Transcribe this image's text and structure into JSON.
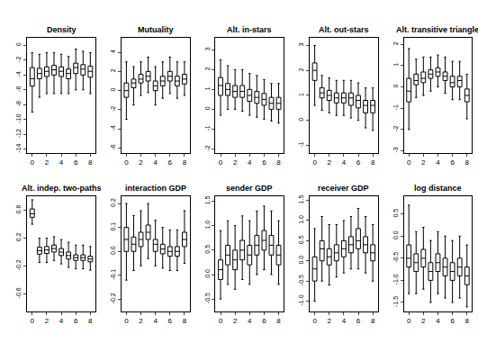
{
  "chart_data": [
    {
      "type": "box",
      "title": "Density",
      "color": "#000000",
      "x": [
        0,
        1,
        2,
        3,
        4,
        5,
        6,
        7,
        8
      ],
      "xlim": [
        -0.7,
        8.7
      ],
      "xticks": [
        0,
        2,
        4,
        6,
        8
      ],
      "ylim": [
        -14.5,
        1
      ],
      "yticks": [
        -14,
        -12,
        -10,
        -8,
        -6,
        -4,
        -2,
        0
      ],
      "lowerfence": [
        -9,
        -7,
        -6.5,
        -6.5,
        -6.5,
        -6.5,
        -6,
        -6,
        -6.5
      ],
      "q1": [
        -5.5,
        -4.5,
        -4.2,
        -4,
        -4.2,
        -4.5,
        -3.8,
        -4,
        -4.3
      ],
      "median": [
        -4.5,
        -3.8,
        -3.5,
        -3.3,
        -3.5,
        -3.8,
        -3,
        -3.2,
        -3.5
      ],
      "q3": [
        -3,
        -3.1,
        -2.9,
        -2.7,
        -2.9,
        -3.2,
        -2.4,
        -2.6,
        -2.8
      ],
      "upperfence": [
        -1,
        -1.2,
        -1,
        -1,
        -1.2,
        -1.5,
        -0.5,
        -0.8,
        -1
      ]
    },
    {
      "type": "box",
      "title": "Mutuality",
      "color": "#000000",
      "x": [
        0,
        1,
        2,
        3,
        4,
        5,
        6,
        7,
        8
      ],
      "xlim": [
        -0.7,
        8.7
      ],
      "xticks": [
        0,
        2,
        4,
        6,
        8
      ],
      "ylim": [
        -6.5,
        5.5
      ],
      "yticks": [
        -6,
        -4,
        -2,
        0,
        2,
        4
      ],
      "lowerfence": [
        -3,
        -1.5,
        -0.5,
        -0.2,
        -1.5,
        -0.8,
        -0.3,
        -0.8,
        -0.5
      ],
      "q1": [
        -0.7,
        0.3,
        0.8,
        1.0,
        0.0,
        0.5,
        1.0,
        0.5,
        0.7
      ],
      "median": [
        0,
        0.8,
        1.2,
        1.5,
        0.5,
        1.0,
        1.5,
        1.0,
        1.2
      ],
      "q3": [
        0.8,
        1.2,
        1.7,
        2.0,
        1.0,
        1.5,
        2.0,
        1.5,
        1.7
      ],
      "upperfence": [
        3,
        2.5,
        3,
        3.5,
        2.5,
        3,
        3.5,
        3,
        3
      ]
    },
    {
      "type": "box",
      "title": "Alt. in-stars",
      "color": "#000000",
      "x": [
        0,
        1,
        2,
        3,
        4,
        5,
        6,
        7,
        8
      ],
      "xlim": [
        -0.7,
        8.7
      ],
      "xticks": [
        0,
        2,
        4,
        6,
        8
      ],
      "ylim": [
        -2.2,
        3.6
      ],
      "yticks": [
        -2,
        -1,
        0,
        1,
        2,
        3
      ],
      "lowerfence": [
        -0.3,
        0.0,
        0.0,
        -0.1,
        -0.3,
        -0.4,
        -0.5,
        -0.6,
        -0.7
      ],
      "q1": [
        0.7,
        0.7,
        0.6,
        0.6,
        0.4,
        0.3,
        0.2,
        0.0,
        0.0
      ],
      "median": [
        1.2,
        1.0,
        0.9,
        0.9,
        0.7,
        0.6,
        0.5,
        0.3,
        0.3
      ],
      "q3": [
        1.6,
        1.3,
        1.2,
        1.2,
        1.0,
        0.9,
        0.8,
        0.6,
        0.6
      ],
      "upperfence": [
        2.5,
        2.2,
        2.0,
        2.0,
        1.8,
        1.7,
        1.5,
        1.3,
        1.3
      ]
    },
    {
      "type": "box",
      "title": "Alt. out-stars",
      "color": "#000000",
      "x": [
        0,
        1,
        2,
        3,
        4,
        5,
        6,
        7,
        8
      ],
      "xlim": [
        -0.7,
        8.7
      ],
      "xticks": [
        0,
        2,
        4,
        6,
        8
      ],
      "ylim": [
        -1.3,
        3.3
      ],
      "yticks": [
        -1,
        0,
        1,
        2,
        3
      ],
      "lowerfence": [
        0.6,
        0.4,
        0.3,
        0.2,
        0.2,
        0.1,
        0.0,
        -0.3,
        -0.4
      ],
      "q1": [
        1.6,
        0.9,
        0.8,
        0.7,
        0.7,
        0.6,
        0.5,
        0.3,
        0.3
      ],
      "median": [
        2.0,
        1.1,
        1.0,
        0.9,
        0.9,
        0.9,
        0.8,
        0.6,
        0.6
      ],
      "q3": [
        2.3,
        1.3,
        1.2,
        1.1,
        1.1,
        1.1,
        1.0,
        0.8,
        0.8
      ],
      "upperfence": [
        3.0,
        1.8,
        1.7,
        1.6,
        1.6,
        1.6,
        1.5,
        1.3,
        1.3
      ]
    },
    {
      "type": "box",
      "title": "Alt. transitive triangle",
      "color": "#000000",
      "x": [
        0,
        1,
        2,
        3,
        4,
        5,
        6,
        7,
        8
      ],
      "xlim": [
        -0.7,
        8.7
      ],
      "xticks": [
        0,
        2,
        4,
        6,
        8
      ],
      "ylim": [
        -3.1,
        2.3
      ],
      "yticks": [
        -3,
        -2,
        -1,
        0,
        1,
        2
      ],
      "lowerfence": [
        -2.0,
        -0.5,
        -0.4,
        -0.2,
        0.0,
        -0.3,
        -0.6,
        -0.6,
        -1.5
      ],
      "q1": [
        -0.7,
        0.1,
        0.2,
        0.4,
        0.5,
        0.3,
        0.0,
        0.0,
        -0.7
      ],
      "median": [
        -0.2,
        0.3,
        0.4,
        0.6,
        0.7,
        0.5,
        0.2,
        0.3,
        -0.4
      ],
      "q3": [
        0.4,
        0.6,
        0.7,
        0.8,
        0.9,
        0.7,
        0.5,
        0.5,
        -0.1
      ],
      "upperfence": [
        1.8,
        1.3,
        1.4,
        1.4,
        1.5,
        1.4,
        1.2,
        1.2,
        0.6
      ]
    },
    {
      "type": "box",
      "title": "Alt. indep. two-paths",
      "color": "#000000",
      "x": [
        0,
        1,
        2,
        3,
        4,
        5,
        6,
        7,
        8
      ],
      "xlim": [
        -0.7,
        8.7
      ],
      "xticks": [
        0,
        2,
        4,
        6,
        8
      ],
      "ylim": [
        -0.85,
        0.8
      ],
      "yticks": [
        -0.6,
        -0.2,
        0.2,
        0.6
      ],
      "lowerfence": [
        0.4,
        -0.15,
        -0.15,
        -0.12,
        -0.17,
        -0.22,
        -0.24,
        -0.24,
        -0.26
      ],
      "q1": [
        0.5,
        -0.03,
        -0.02,
        0.0,
        -0.05,
        -0.1,
        -0.12,
        -0.12,
        -0.14
      ],
      "median": [
        0.55,
        0.02,
        0.03,
        0.05,
        0.0,
        -0.05,
        -0.08,
        -0.08,
        -0.1
      ],
      "q3": [
        0.62,
        0.07,
        0.08,
        0.1,
        0.05,
        0.0,
        -0.04,
        -0.04,
        -0.06
      ],
      "upperfence": [
        0.75,
        0.2,
        0.2,
        0.22,
        0.18,
        0.14,
        0.1,
        0.1,
        0.08
      ]
    },
    {
      "type": "box",
      "title": "interaction GDP",
      "color": "#000000",
      "x": [
        0,
        1,
        2,
        3,
        4,
        5,
        6,
        7,
        8
      ],
      "xlim": [
        -0.7,
        8.7
      ],
      "xticks": [
        0,
        2,
        4,
        6,
        8
      ],
      "ylim": [
        -0.25,
        0.23
      ],
      "yticks": [
        -0.2,
        -0.1,
        {
          "value": 0,
          "label": "0.0"
        },
        0.1,
        0.2
      ],
      "lowerfence": [
        -0.12,
        -0.08,
        -0.06,
        -0.03,
        -0.06,
        -0.07,
        -0.08,
        -0.08,
        -0.05
      ],
      "q1": [
        0.0,
        0.0,
        0.02,
        0.05,
        0.0,
        -0.01,
        -0.02,
        -0.02,
        0.02
      ],
      "median": [
        0.05,
        0.03,
        0.05,
        0.08,
        0.03,
        0.01,
        0.0,
        0.0,
        0.05
      ],
      "q3": [
        0.1,
        0.06,
        0.08,
        0.11,
        0.05,
        0.03,
        0.02,
        0.02,
        0.08
      ],
      "upperfence": [
        0.2,
        0.15,
        0.17,
        0.2,
        0.13,
        0.1,
        0.09,
        0.09,
        0.17
      ]
    },
    {
      "type": "box",
      "title": "sender GDP",
      "color": "#000000",
      "x": [
        0,
        1,
        2,
        3,
        4,
        5,
        6,
        7,
        8
      ],
      "xlim": [
        -0.7,
        8.7
      ],
      "xticks": [
        0,
        2,
        4,
        6,
        8
      ],
      "ylim": [
        -0.75,
        1.6
      ],
      "yticks": [
        -0.5,
        {
          "value": 0,
          "label": "0.0"
        },
        0.5,
        {
          "value": 1,
          "label": "1.0"
        },
        1.5
      ],
      "lowerfence": [
        -0.5,
        -0.2,
        -0.3,
        -0.1,
        -0.2,
        0.0,
        0.1,
        0.0,
        -0.2
      ],
      "q1": [
        -0.1,
        0.2,
        0.1,
        0.3,
        0.2,
        0.4,
        0.5,
        0.4,
        0.2
      ],
      "median": [
        0.1,
        0.4,
        0.3,
        0.5,
        0.4,
        0.6,
        0.7,
        0.6,
        0.4
      ],
      "q3": [
        0.3,
        0.6,
        0.5,
        0.7,
        0.6,
        0.8,
        0.9,
        0.8,
        0.6
      ],
      "upperfence": [
        0.9,
        1.1,
        1.0,
        1.2,
        1.1,
        1.3,
        1.4,
        1.3,
        1.1
      ]
    },
    {
      "type": "box",
      "title": "receiver GDP",
      "color": "#000000",
      "x": [
        0,
        1,
        2,
        3,
        4,
        5,
        6,
        7,
        8
      ],
      "xlim": [
        -0.7,
        8.7
      ],
      "xticks": [
        0,
        2,
        4,
        6,
        8
      ],
      "ylim": [
        -1.25,
        1.6
      ],
      "yticks": [
        {
          "value": -1,
          "label": "-1.0"
        },
        -0.5,
        {
          "value": 0,
          "label": "0.0"
        },
        0.5,
        {
          "value": 1,
          "label": "1.0"
        },
        1.5
      ],
      "lowerfence": [
        -1.0,
        -0.5,
        -0.6,
        -0.4,
        -0.3,
        -0.2,
        -0.2,
        -0.3,
        -0.5
      ],
      "q1": [
        -0.5,
        0.0,
        -0.1,
        0.0,
        0.1,
        0.2,
        0.3,
        0.2,
        0.0
      ],
      "median": [
        -0.2,
        0.3,
        0.1,
        0.2,
        0.3,
        0.4,
        0.5,
        0.4,
        0.2
      ],
      "q3": [
        0.1,
        0.5,
        0.3,
        0.4,
        0.5,
        0.6,
        0.8,
        0.6,
        0.4
      ],
      "upperfence": [
        0.8,
        1.1,
        0.9,
        0.9,
        1.0,
        1.1,
        1.3,
        1.1,
        0.9
      ]
    },
    {
      "type": "box",
      "title": "log distance",
      "color": "#000000",
      "x": [
        0,
        1,
        2,
        3,
        4,
        5,
        6,
        7,
        8
      ],
      "xlim": [
        -0.7,
        8.7
      ],
      "xticks": [
        0,
        2,
        4,
        6,
        8
      ],
      "ylim": [
        -1.7,
        0.9
      ],
      "yticks": [
        -1.5,
        {
          "value": -1,
          "label": "-1.0"
        },
        -0.5,
        {
          "value": 0,
          "label": "0.0"
        },
        0.5
      ],
      "lowerfence": [
        -1.3,
        -1.3,
        -1.2,
        -1.5,
        -1.3,
        -1.4,
        -1.5,
        -1.4,
        -1.6
      ],
      "q1": [
        -0.7,
        -0.8,
        -0.7,
        -1.0,
        -0.8,
        -0.9,
        -1.0,
        -0.9,
        -1.1
      ],
      "median": [
        -0.5,
        -0.6,
        -0.5,
        -0.8,
        -0.6,
        -0.7,
        -0.8,
        -0.7,
        -0.9
      ],
      "q3": [
        -0.2,
        -0.4,
        -0.3,
        -0.6,
        -0.4,
        -0.5,
        -0.6,
        -0.5,
        -0.7
      ],
      "upperfence": [
        0.7,
        0.1,
        0.2,
        -0.1,
        0.1,
        0.0,
        -0.1,
        0.0,
        -0.2
      ]
    }
  ]
}
